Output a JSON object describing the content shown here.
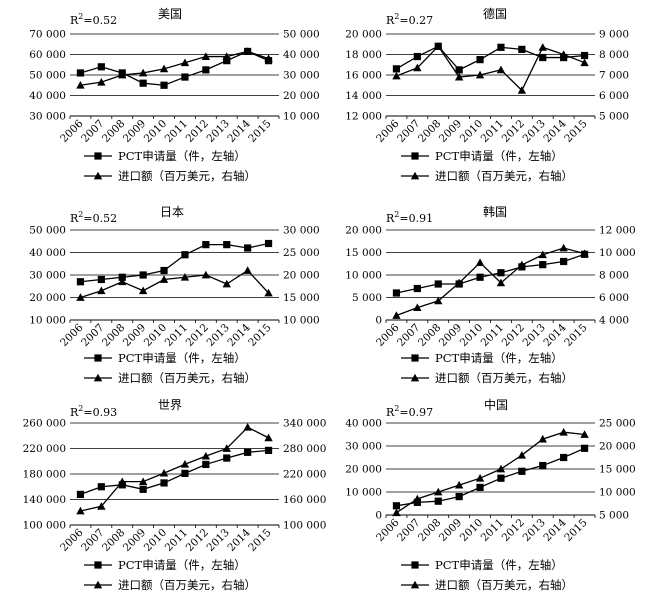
{
  "legend": {
    "pct_label": "PCT申请量（件，左轴）",
    "import_label": "进口额（百万美元，右轴）"
  },
  "chart_data": [
    {
      "type": "line",
      "title": "美国",
      "r2": "R²=0.52",
      "r2_base": "R",
      "r2_sup": "2",
      "r2_val": "=0.52",
      "categories": [
        "2006",
        "2007",
        "2008",
        "2009",
        "2010",
        "2011",
        "2012",
        "2013",
        "2014",
        "2015"
      ],
      "left_axis": {
        "min": 30000,
        "max": 70000,
        "ticks": [
          "30 000",
          "40 000",
          "50 000",
          "60 000",
          "70 000"
        ]
      },
      "right_axis": {
        "min": 10000,
        "max": 50000,
        "ticks": [
          "10 000",
          "20 000",
          "30 000",
          "40 000",
          "50 000"
        ]
      },
      "series": [
        {
          "name": "PCT申请量（件，左轴）",
          "axis": "left",
          "marker": "square",
          "values": [
            51000,
            54000,
            51000,
            46000,
            45000,
            49000,
            52500,
            57000,
            61500,
            57000
          ]
        },
        {
          "name": "进口额（百万美元，右轴）",
          "axis": "right",
          "marker": "triangle",
          "values": [
            25000,
            26500,
            30000,
            31000,
            33000,
            36000,
            39000,
            39000,
            41500,
            38000
          ]
        }
      ]
    },
    {
      "type": "line",
      "title": "德国",
      "r2": "R²=0.27",
      "r2_base": "R",
      "r2_sup": "2",
      "r2_val": "=0.27",
      "categories": [
        "2006",
        "2007",
        "2008",
        "2009",
        "2010",
        "2011",
        "2012",
        "2013",
        "2014",
        "2015"
      ],
      "left_axis": {
        "min": 12000,
        "max": 20000,
        "ticks": [
          "12 000",
          "14 000",
          "16 000",
          "18 000",
          "20 000"
        ]
      },
      "right_axis": {
        "min": 5000,
        "max": 9000,
        "ticks": [
          "5 000",
          "6 000",
          "7 000",
          "8 000",
          "9 000"
        ]
      },
      "series": [
        {
          "name": "PCT申请量（件，左轴）",
          "axis": "left",
          "marker": "square",
          "values": [
            16600,
            17800,
            18800,
            16500,
            17500,
            18700,
            18500,
            17700,
            17700,
            17900
          ]
        },
        {
          "name": "进口额（百万美元，右轴）",
          "axis": "right",
          "marker": "triangle",
          "values": [
            6950,
            7350,
            8400,
            6900,
            7000,
            7250,
            6250,
            8350,
            8000,
            7600
          ]
        }
      ]
    },
    {
      "type": "line",
      "title": "日本",
      "r2": "R²=0.52",
      "r2_base": "R",
      "r2_sup": "2",
      "r2_val": "=0.52",
      "categories": [
        "2006",
        "2007",
        "2008",
        "2009",
        "2010",
        "2011",
        "2012",
        "2013",
        "2014",
        "2015"
      ],
      "left_axis": {
        "min": 10000,
        "max": 50000,
        "ticks": [
          "10 000",
          "20 000",
          "30 000",
          "40 000",
          "50 000"
        ]
      },
      "right_axis": {
        "min": 10000,
        "max": 30000,
        "ticks": [
          "10 000",
          "15 000",
          "20 000",
          "25 000",
          "30 000"
        ]
      },
      "series": [
        {
          "name": "PCT申请量（件，左轴）",
          "axis": "left",
          "marker": "square",
          "values": [
            27000,
            28000,
            29000,
            30000,
            32000,
            39000,
            43500,
            43500,
            42000,
            44000
          ]
        },
        {
          "name": "进口额（百万美元，右轴）",
          "axis": "right",
          "marker": "triangle",
          "values": [
            15000,
            16500,
            18500,
            16500,
            19000,
            19500,
            20000,
            18000,
            21000,
            16000
          ]
        }
      ]
    },
    {
      "type": "line",
      "title": "韩国",
      "r2": "R²=0.91",
      "r2_base": "R",
      "r2_sup": "2",
      "r2_val": "=0.91",
      "categories": [
        "2006",
        "2007",
        "2008",
        "2009",
        "2010",
        "2011",
        "2012",
        "2013",
        "2014",
        "2015"
      ],
      "left_axis": {
        "min": 0,
        "max": 20000,
        "ticks": [
          "0",
          "5 000",
          "10 000",
          "15 000",
          "20 000"
        ]
      },
      "right_axis": {
        "min": 4000,
        "max": 12000,
        "ticks": [
          "4 000",
          "6 000",
          "8 000",
          "10 000",
          "12 000"
        ]
      },
      "series": [
        {
          "name": "PCT申请量（件，左轴）",
          "axis": "left",
          "marker": "square",
          "values": [
            6000,
            7000,
            8000,
            8000,
            9500,
            10500,
            11800,
            12300,
            13000,
            14600
          ]
        },
        {
          "name": "进口额（百万美元，右轴）",
          "axis": "right",
          "marker": "triangle",
          "values": [
            4400,
            5100,
            5700,
            7300,
            9100,
            7300,
            8900,
            9800,
            10400,
            9900
          ]
        }
      ]
    },
    {
      "type": "line",
      "title": "世界",
      "r2": "R²=0.93",
      "r2_base": "R",
      "r2_sup": "2",
      "r2_val": "=0.93",
      "categories": [
        "2006",
        "2007",
        "2008",
        "2009",
        "2010",
        "2011",
        "2012",
        "2013",
        "2014",
        "2015"
      ],
      "left_axis": {
        "min": 100000,
        "max": 260000,
        "ticks": [
          "100 000",
          "140 000",
          "180 000",
          "220 000",
          "260 000"
        ]
      },
      "right_axis": {
        "min": 100000,
        "max": 340000,
        "ticks": [
          "100 000",
          "160 000",
          "220 000",
          "280 000",
          "340 000"
        ]
      },
      "series": [
        {
          "name": "PCT申请量（件，左轴）",
          "axis": "left",
          "marker": "square",
          "values": [
            148000,
            160000,
            163000,
            156000,
            166000,
            181000,
            195000,
            205000,
            214000,
            217000
          ]
        },
        {
          "name": "进口额（百万美元，右轴）",
          "axis": "right",
          "marker": "triangle",
          "values": [
            133000,
            144000,
            202000,
            202000,
            222000,
            243000,
            262000,
            280000,
            330000,
            305000
          ]
        }
      ]
    },
    {
      "type": "line",
      "title": "中国",
      "r2": "R²=0.97",
      "r2_base": "R",
      "r2_sup": "2",
      "r2_val": "=0.97",
      "categories": [
        "2006",
        "2007",
        "2008",
        "2009",
        "2010",
        "2011",
        "2012",
        "2013",
        "2014",
        "2015"
      ],
      "left_axis": {
        "min": 0,
        "max": 40000,
        "ticks": [
          "0",
          "10 000",
          "20 000",
          "30 000",
          "40 000"
        ]
      },
      "right_axis": {
        "min": 5000,
        "max": 25000,
        "ticks": [
          "5 000",
          "10 000",
          "15 000",
          "20 000",
          "25 000"
        ]
      },
      "series": [
        {
          "name": "PCT申请量（件，左轴）",
          "axis": "left",
          "marker": "square",
          "values": [
            4000,
            5500,
            6000,
            8000,
            12000,
            16000,
            19000,
            21500,
            25000,
            29000
          ]
        },
        {
          "name": "进口额（百万美元，右轴）",
          "axis": "right",
          "marker": "triangle",
          "values": [
            5500,
            8500,
            10000,
            11500,
            13000,
            15000,
            18000,
            21500,
            23000,
            22500
          ]
        }
      ]
    }
  ]
}
